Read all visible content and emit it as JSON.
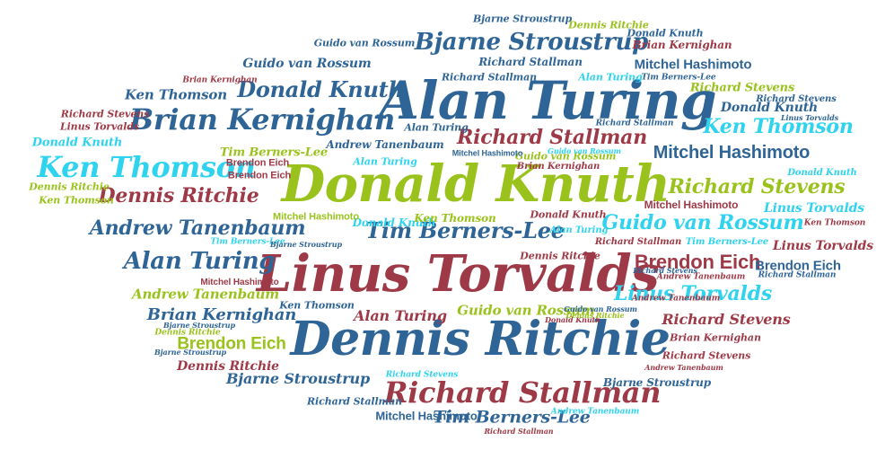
{
  "words": [
    {
      "text": "Alan Turing",
      "color": "#2f6596",
      "size": 58
    },
    {
      "text": "Linus Torvalds",
      "color": "#9e3a47",
      "size": 56
    },
    {
      "text": "Donald Knuth",
      "color": "#9ac21c",
      "size": 56
    },
    {
      "text": "Dennis Ritchie",
      "color": "#2f6596",
      "size": 52
    },
    {
      "text": "Brian Kernighan",
      "color": "#2f6596",
      "size": 32
    },
    {
      "text": "Ken Thomson",
      "color": "#2fd3ee",
      "size": 32
    },
    {
      "text": "Richard Stallman",
      "color": "#9e3a47",
      "size": 32
    },
    {
      "text": "Bjarne Stroustrup",
      "color": "#2f6596",
      "size": 26
    },
    {
      "text": "Donald Knuth",
      "color": "#2f6596",
      "size": 24
    },
    {
      "text": "Richard Stallman",
      "color": "#9e3a47",
      "size": 22
    },
    {
      "text": "Mitchel Hashimoto",
      "color": "#2f6596",
      "size": 22
    },
    {
      "text": "Ken Thomson",
      "color": "#2fd3ee",
      "size": 22
    },
    {
      "text": "Richard Stevens",
      "color": "#9ac21c",
      "size": 22
    },
    {
      "text": "Dennis Ritchie",
      "color": "#9e3a47",
      "size": 22
    },
    {
      "text": "Guido van Rossum",
      "color": "#2fd3ee",
      "size": 22
    },
    {
      "text": "Andrew Tanenbaum",
      "color": "#2f6596",
      "size": 22
    },
    {
      "text": "Tim Berners-Lee",
      "color": "#2f6596",
      "size": 24
    },
    {
      "text": "Alan Turing",
      "color": "#2f6596",
      "size": 26
    },
    {
      "text": "Brendon Eich",
      "color": "#9e3a47",
      "size": 24
    },
    {
      "text": "Linus Torvalds",
      "color": "#2fd3ee",
      "size": 22
    },
    {
      "text": "Brendon Eich",
      "color": "#9ac21c",
      "size": 20
    },
    {
      "text": "Brian Kernighan",
      "color": "#2f6596",
      "size": 18
    },
    {
      "text": "Richard Stevens",
      "color": "#9e3a47",
      "size": 16
    },
    {
      "text": "Guido van Rossum",
      "color": "#9ac21c",
      "size": 15
    },
    {
      "text": "Alan Turing",
      "color": "#9e3a47",
      "size": 16
    },
    {
      "text": "Andrew Tanenbaum",
      "color": "#9ac21c",
      "size": 15
    },
    {
      "text": "Bjarne Stroustrup",
      "color": "#2f6596",
      "size": 16
    },
    {
      "text": "Dennis Ritchie",
      "color": "#9e3a47",
      "size": 14
    },
    {
      "text": "Mitchel Hashimoto",
      "color": "#2f6596",
      "size": 15
    },
    {
      "text": "Donald Knuth",
      "color": "#2fd3ee",
      "size": 14
    },
    {
      "text": "Richard Stallman",
      "color": "#2f6596",
      "size": 12
    },
    {
      "text": "Linus Torvalds",
      "color": "#9e3a47",
      "size": 14
    },
    {
      "text": "Brendon Eich",
      "color": "#2f6596",
      "size": 16
    },
    {
      "text": "Guido van Rossum",
      "color": "#2f6596",
      "size": 14
    },
    {
      "text": "Ken Thomson",
      "color": "#2f6596",
      "size": 16
    },
    {
      "text": "Mitchel Hashimoto",
      "color": "#2f6596",
      "size": 14
    },
    {
      "text": "Tim Berners-Lee",
      "color": "#9ac21c",
      "size": 13
    },
    {
      "text": "Andrew Tanenbaum",
      "color": "#2f6596",
      "size": 12
    },
    {
      "text": "Donald Knuth",
      "color": "#2fd3ee",
      "size": 13
    },
    {
      "text": "Dennis Ritchie",
      "color": "#9ac21c",
      "size": 11
    },
    {
      "text": "Ken Thomson",
      "color": "#9ac21c",
      "size": 11
    },
    {
      "text": "Brian Kernighan",
      "color": "#9e3a47",
      "size": 9
    },
    {
      "text": "Richard Stevens",
      "color": "#9e3a47",
      "size": 11
    },
    {
      "text": "Linus Torvalds",
      "color": "#9e3a47",
      "size": 11
    },
    {
      "text": "Bjarne Stroustrup",
      "color": "#2f6596",
      "size": 12
    },
    {
      "text": "Dennis Ritchie",
      "color": "#9ac21c",
      "size": 11
    },
    {
      "text": "Donald Knuth",
      "color": "#2f6596",
      "size": 11
    },
    {
      "text": "Brian Kernighan",
      "color": "#9e3a47",
      "size": 13
    },
    {
      "text": "Guido van Rossum",
      "color": "#2f6596",
      "size": 11
    },
    {
      "text": "Richard Stallman",
      "color": "#2f6596",
      "size": 12
    },
    {
      "text": "Alan Turing",
      "color": "#2fd3ee",
      "size": 11
    },
    {
      "text": "Tim Berners-Lee",
      "color": "#2f6596",
      "size": 10
    },
    {
      "text": "Richard Stevens",
      "color": "#9ac21c",
      "size": 13
    },
    {
      "text": "Richard Stevens",
      "color": "#2f6596",
      "size": 10
    },
    {
      "text": "Donald Knuth",
      "color": "#2f6596",
      "size": 12
    },
    {
      "text": "Richard Stallman",
      "color": "#2f6596",
      "size": 9
    },
    {
      "text": "Alan Turing",
      "color": "#2f6596",
      "size": 11
    },
    {
      "text": "Brendon Eich",
      "color": "#9e3a47",
      "size": 11
    },
    {
      "text": "Brendon Eich",
      "color": "#9e3a47",
      "size": 11
    },
    {
      "text": "Guido van Rossum",
      "color": "#9ac21c",
      "size": 11
    },
    {
      "text": "Brian Kernighan",
      "color": "#9e3a47",
      "size": 10
    },
    {
      "text": "Mitchel Hashimoto",
      "color": "#2f6596",
      "size": 10
    },
    {
      "text": "Alan Turing",
      "color": "#2fd3ee",
      "size": 11
    },
    {
      "text": "Ken Thomson",
      "color": "#9ac21c",
      "size": 12
    },
    {
      "text": "Mitchel Hashimoto",
      "color": "#9ac21c",
      "size": 12
    },
    {
      "text": "Donald Knuth",
      "color": "#2fd3ee",
      "size": 10
    },
    {
      "text": "Linus Torvalds",
      "color": "#2f6596",
      "size": 10
    },
    {
      "text": "Mitchel Hashimoto",
      "color": "#9e3a47",
      "size": 12
    },
    {
      "text": "Donald Knuth",
      "color": "#9e3a47",
      "size": 11
    },
    {
      "text": "Alan Turing",
      "color": "#2fd3ee",
      "size": 10
    },
    {
      "text": "Richard Stallman",
      "color": "#9e3a47",
      "size": 10
    },
    {
      "text": "Tim Berners-Lee",
      "color": "#2fd3ee",
      "size": 9
    },
    {
      "text": "Bjarne Stroustrup",
      "color": "#2f6596",
      "size": 8
    },
    {
      "text": "Dennis Ritchie",
      "color": "#9e3a47",
      "size": 11
    },
    {
      "text": "Tim Berners-Lee",
      "color": "#2fd3ee",
      "size": 10
    },
    {
      "text": "Linus Torvalds",
      "color": "#9e3a47",
      "size": 15
    },
    {
      "text": "Ken Thomson",
      "color": "#9e3a47",
      "size": 9
    },
    {
      "text": "Andrew Tanenbaum",
      "color": "#9e3a47",
      "size": 9
    },
    {
      "text": "Richard Stallman",
      "color": "#2f6596",
      "size": 9
    },
    {
      "text": "Ken Thomson",
      "color": "#2f6596",
      "size": 12
    },
    {
      "text": "Bjarne Stroustrup",
      "color": "#2f6596",
      "size": 9
    },
    {
      "text": "Donald Knuth",
      "color": "#9e3a47",
      "size": 8
    },
    {
      "text": "Dennis Ritchie",
      "color": "#9ac21c",
      "size": 10
    },
    {
      "text": "Richard Stevens",
      "color": "#2fd3ee",
      "size": 9
    },
    {
      "text": "Bjarne Stroustrup",
      "color": "#2f6596",
      "size": 13
    },
    {
      "text": "Andrew Tanenbaum",
      "color": "#9e3a47",
      "size": 9
    },
    {
      "text": "Mitchel Hashimoto",
      "color": "#9e3a47",
      "size": 12
    },
    {
      "text": "Tim Berners-Lee",
      "color": "#2f6596",
      "size": 20
    },
    {
      "text": "Andrew Tanenbaum",
      "color": "#2fd3ee",
      "size": 9
    },
    {
      "text": "Richard Stallman",
      "color": "#9e3a47",
      "size": 9
    },
    {
      "text": "Bjarne Stroustrup",
      "color": "#2f6596",
      "size": 11
    },
    {
      "text": "Richard Stallman",
      "color": "#2f6596",
      "size": 12
    },
    {
      "text": "Brian Kernighan",
      "color": "#9e3a47",
      "size": 9
    },
    {
      "text": "Richard Stevens",
      "color": "#9e3a47",
      "size": 11
    },
    {
      "text": "Andrew Tanenbaum",
      "color": "#9e3a47",
      "size": 9
    },
    {
      "text": "Guido van Rossum",
      "color": "#2fd3ee",
      "size": 9
    },
    {
      "text": "Richard Stevens",
      "color": "#2f6596",
      "size": 9
    },
    {
      "text": "Dennis Ritchie",
      "color": "#9ac21c",
      "size": 11
    },
    {
      "text": "Guido van Rossum",
      "color": "#2f6596",
      "size": 9
    }
  ]
}
